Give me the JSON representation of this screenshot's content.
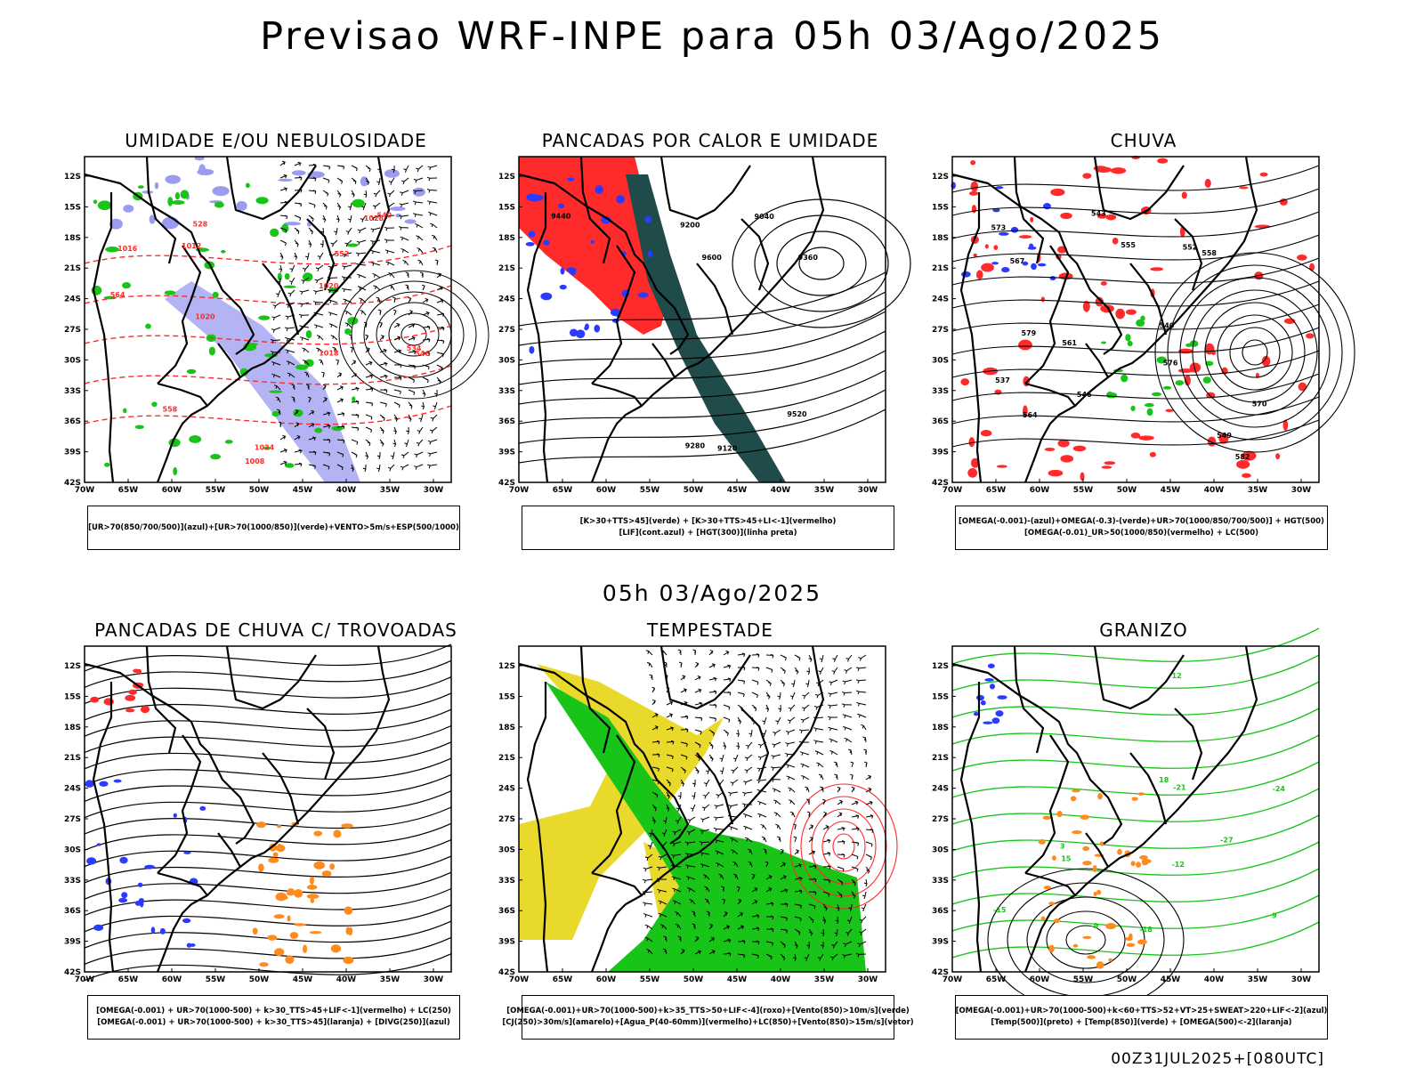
{
  "header": {
    "title": "Previsao WRF-INPE  para 05h 03/Ago/2025"
  },
  "subheader": {
    "datetime": "05h 03/Ago/2025"
  },
  "footer": {
    "run_stamp": "00Z31JUL2025+[080UTC]"
  },
  "axes": {
    "lat_ticks": [
      "12S",
      "15S",
      "18S",
      "21S",
      "24S",
      "27S",
      "30S",
      "33S",
      "36S",
      "39S",
      "42S"
    ],
    "lon_ticks": [
      "70W",
      "65W",
      "60W",
      "55W",
      "50W",
      "45W",
      "40W",
      "35W",
      "30W"
    ]
  },
  "colors": {
    "blue": "#2a3bff",
    "green": "#19c419",
    "red": "#ff2a2a",
    "lavender": "#9b9bf0",
    "dark_teal": "#1f4b4b",
    "yellow": "#e8d92a",
    "orange": "#ff8a1e",
    "purple": "#9a1ea8",
    "black": "#000000"
  },
  "panels": [
    {
      "id": "umidade",
      "title": "UMIDADE E/OU NEBULOSIDADE",
      "legend": [
        "[UR>70(850/700/500)](azul)+[UR>70(1000/850)](verde)+VENTO>5m/s+ESP(500/1000)"
      ],
      "contour_labels": [
        "1016",
        "1012",
        "1020",
        "1024",
        "1028",
        "1008",
        "1018",
        "1020",
        "540",
        "546",
        "534",
        "528",
        "552",
        "558",
        "564"
      ]
    },
    {
      "id": "pancadas-calor",
      "title": "PANCADAS POR CALOR E UMIDADE",
      "legend": [
        "[K>30+TTS>45](verde) + [K>30+TTS>45+LI<-1](vermelho)",
        "[LIF](cont.azul) + [HGT(300)](linha preta)"
      ],
      "contour_labels": [
        "9600",
        "9520",
        "9440",
        "9360",
        "9280",
        "9200",
        "9120",
        "9040"
      ]
    },
    {
      "id": "chuva",
      "title": "CHUVA",
      "legend": [
        "[OMEGA(-0.001)-(azul)+OMEGA(-0.3)-(verde)+UR>70(1000/850/700/500)] + HGT(500)",
        "[OMEGA(-0.01)_UR>50(1000/850)(vermelho) + LC(500)"
      ],
      "contour_labels": [
        "582",
        "579",
        "576",
        "573",
        "570",
        "567",
        "564",
        "561",
        "558",
        "555",
        "552",
        "549",
        "546",
        "543",
        "540",
        "537"
      ]
    },
    {
      "id": "trovoadas",
      "title": "PANCADAS DE CHUVA C/ TROVOADAS",
      "legend": [
        "[OMEGA(-0.001) + UR>70(1000-500) + k>30_TTS>45+LIF<-1](vermelho) + LC(250)",
        "[OMEGA(-0.001) + UR>70(1000-500) + k>30_TTS>45](laranja) + [DIVG(250)](azul)"
      ]
    },
    {
      "id": "tempestade",
      "title": "TEMPESTADE",
      "legend": [
        "[OMEGA(-0.001)+UR>70(1000-500)+k>35_TTS>50+LIF<-4](roxo)+[Vento(850)>10m/s](verde)",
        "[CJ(250)>30m/s](amarelo)+[Agua_P(40-60mm)](vermelho)+LC(850)+[Vento(850)>15m/s](vetor)"
      ]
    },
    {
      "id": "granizo",
      "title": "GRANIZO",
      "legend": [
        "[OMEGA(-0.001)+UR>70(1000-500)+k<60+TTS>52+VT>25+SWEAT>220+LIF<-2](azul)",
        "[Temp(500)](preto) + [Temp(850)](verde) + [OMEGA(500)<-2](laranja)"
      ],
      "contour_labels": [
        "-12",
        "-15",
        "-18",
        "-21",
        "-24",
        "-27",
        "12",
        "15",
        "18",
        "9",
        "-9",
        "3"
      ]
    }
  ]
}
